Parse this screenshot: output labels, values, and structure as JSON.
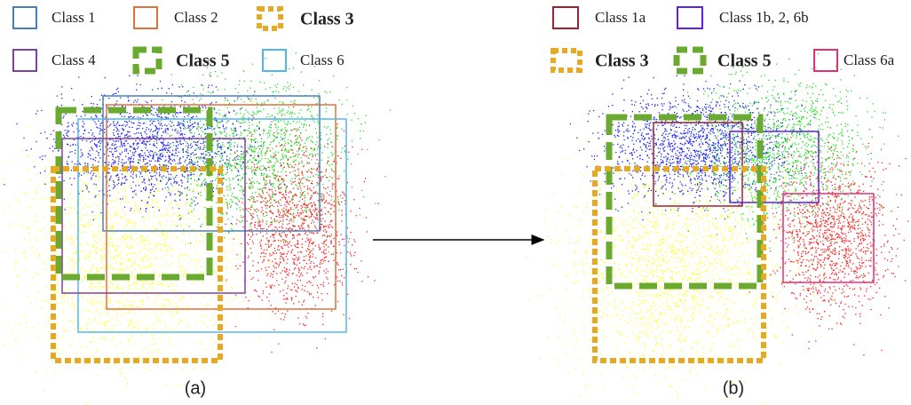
{
  "legend_a": [
    "Class 1",
    "Class 2",
    "Class 3",
    "Class 4",
    "Class 5",
    "Class 6"
  ],
  "legend_b": [
    "Class 1a",
    "Class 1b, 2, 6b",
    "Class 3",
    "Class 5",
    "Class 6a"
  ],
  "panels": [
    {
      "caption": "(a)"
    },
    {
      "caption": "(b)"
    }
  ]
}
